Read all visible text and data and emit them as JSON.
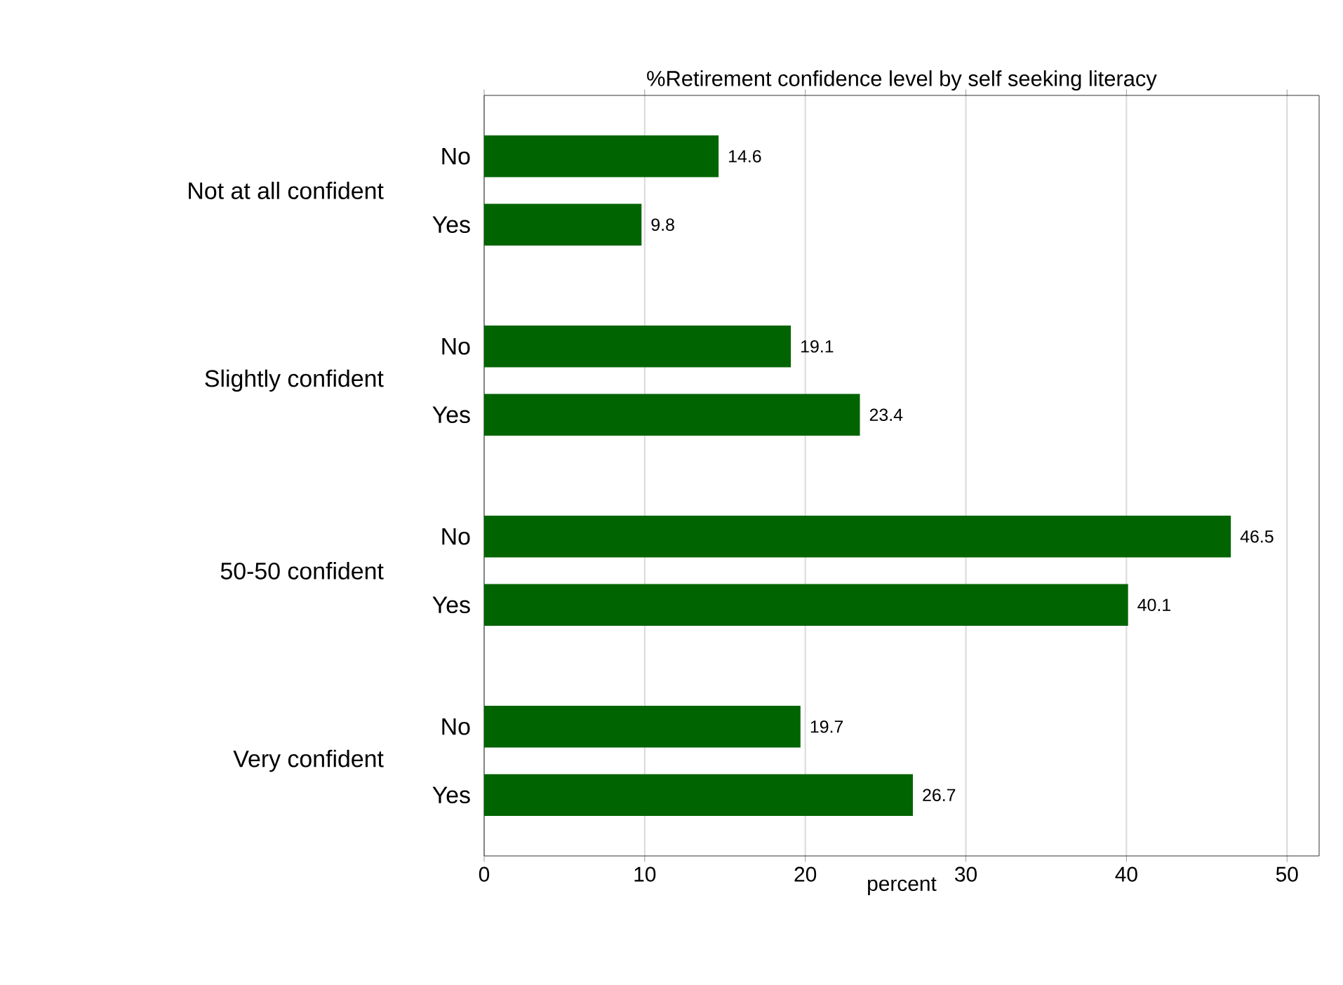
{
  "chart_data": {
    "type": "bar",
    "orientation": "horizontal",
    "title": "%Retirement confidence level by self seeking literacy",
    "xlabel": "percent",
    "categories": [
      "Not at all confident",
      "Slightly confident",
      "50-50 confident",
      "Very confident"
    ],
    "series": [
      {
        "name": "No",
        "color": "#006400",
        "values": [
          14.6,
          19.1,
          46.5,
          19.7
        ]
      },
      {
        "name": "Yes",
        "color": "#006400",
        "values": [
          9.8,
          23.4,
          40.1,
          26.7
        ]
      }
    ],
    "xlim": [
      0,
      52
    ],
    "xticks": [
      0,
      10,
      20,
      30,
      40,
      50
    ],
    "grid": "x",
    "data_labels": true
  }
}
